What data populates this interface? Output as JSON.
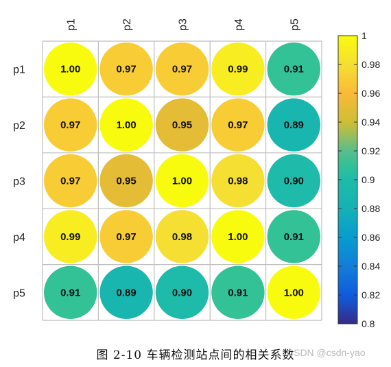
{
  "chart_data": {
    "type": "heatmap",
    "subtype": "circle-correlation-matrix",
    "row_labels": [
      "p1",
      "p2",
      "p3",
      "p4",
      "p5"
    ],
    "col_labels": [
      "p1",
      "p2",
      "p3",
      "p4",
      "p5"
    ],
    "values": [
      [
        1.0,
        0.97,
        0.97,
        0.99,
        0.91
      ],
      [
        0.97,
        1.0,
        0.95,
        0.97,
        0.89
      ],
      [
        0.97,
        0.95,
        1.0,
        0.98,
        0.9
      ],
      [
        0.99,
        0.97,
        0.98,
        1.0,
        0.91
      ],
      [
        0.91,
        0.89,
        0.9,
        0.91,
        1.0
      ]
    ],
    "value_labels": [
      [
        "1.00",
        "0.97",
        "0.97",
        "0.99",
        "0.91"
      ],
      [
        "0.97",
        "1.00",
        "0.95",
        "0.97",
        "0.89"
      ],
      [
        "0.97",
        "0.95",
        "1.00",
        "0.98",
        "0.90"
      ],
      [
        "0.99",
        "0.97",
        "0.98",
        "1.00",
        "0.91"
      ],
      [
        "0.91",
        "0.89",
        "0.90",
        "0.91",
        "1.00"
      ]
    ],
    "colorbar": {
      "min": 0.8,
      "max": 1.0,
      "ticks": [
        0.8,
        0.82,
        0.84,
        0.86,
        0.88,
        0.9,
        0.92,
        0.94,
        0.96,
        0.98,
        1
      ],
      "tick_labels": [
        "0.8",
        "0.82",
        "0.84",
        "0.86",
        "0.88",
        "0.9",
        "0.92",
        "0.94",
        "0.96",
        "0.98",
        "1"
      ],
      "colormap": "parula",
      "placement": "right"
    },
    "grid": true,
    "caption": "图 2-10  车辆检测站点间的相关系数",
    "watermark": "CSDN @csdn-yao"
  },
  "colors": {
    "grid_line": "#bdbdbd",
    "value_text": "#111111",
    "axis_text": "#222222"
  }
}
